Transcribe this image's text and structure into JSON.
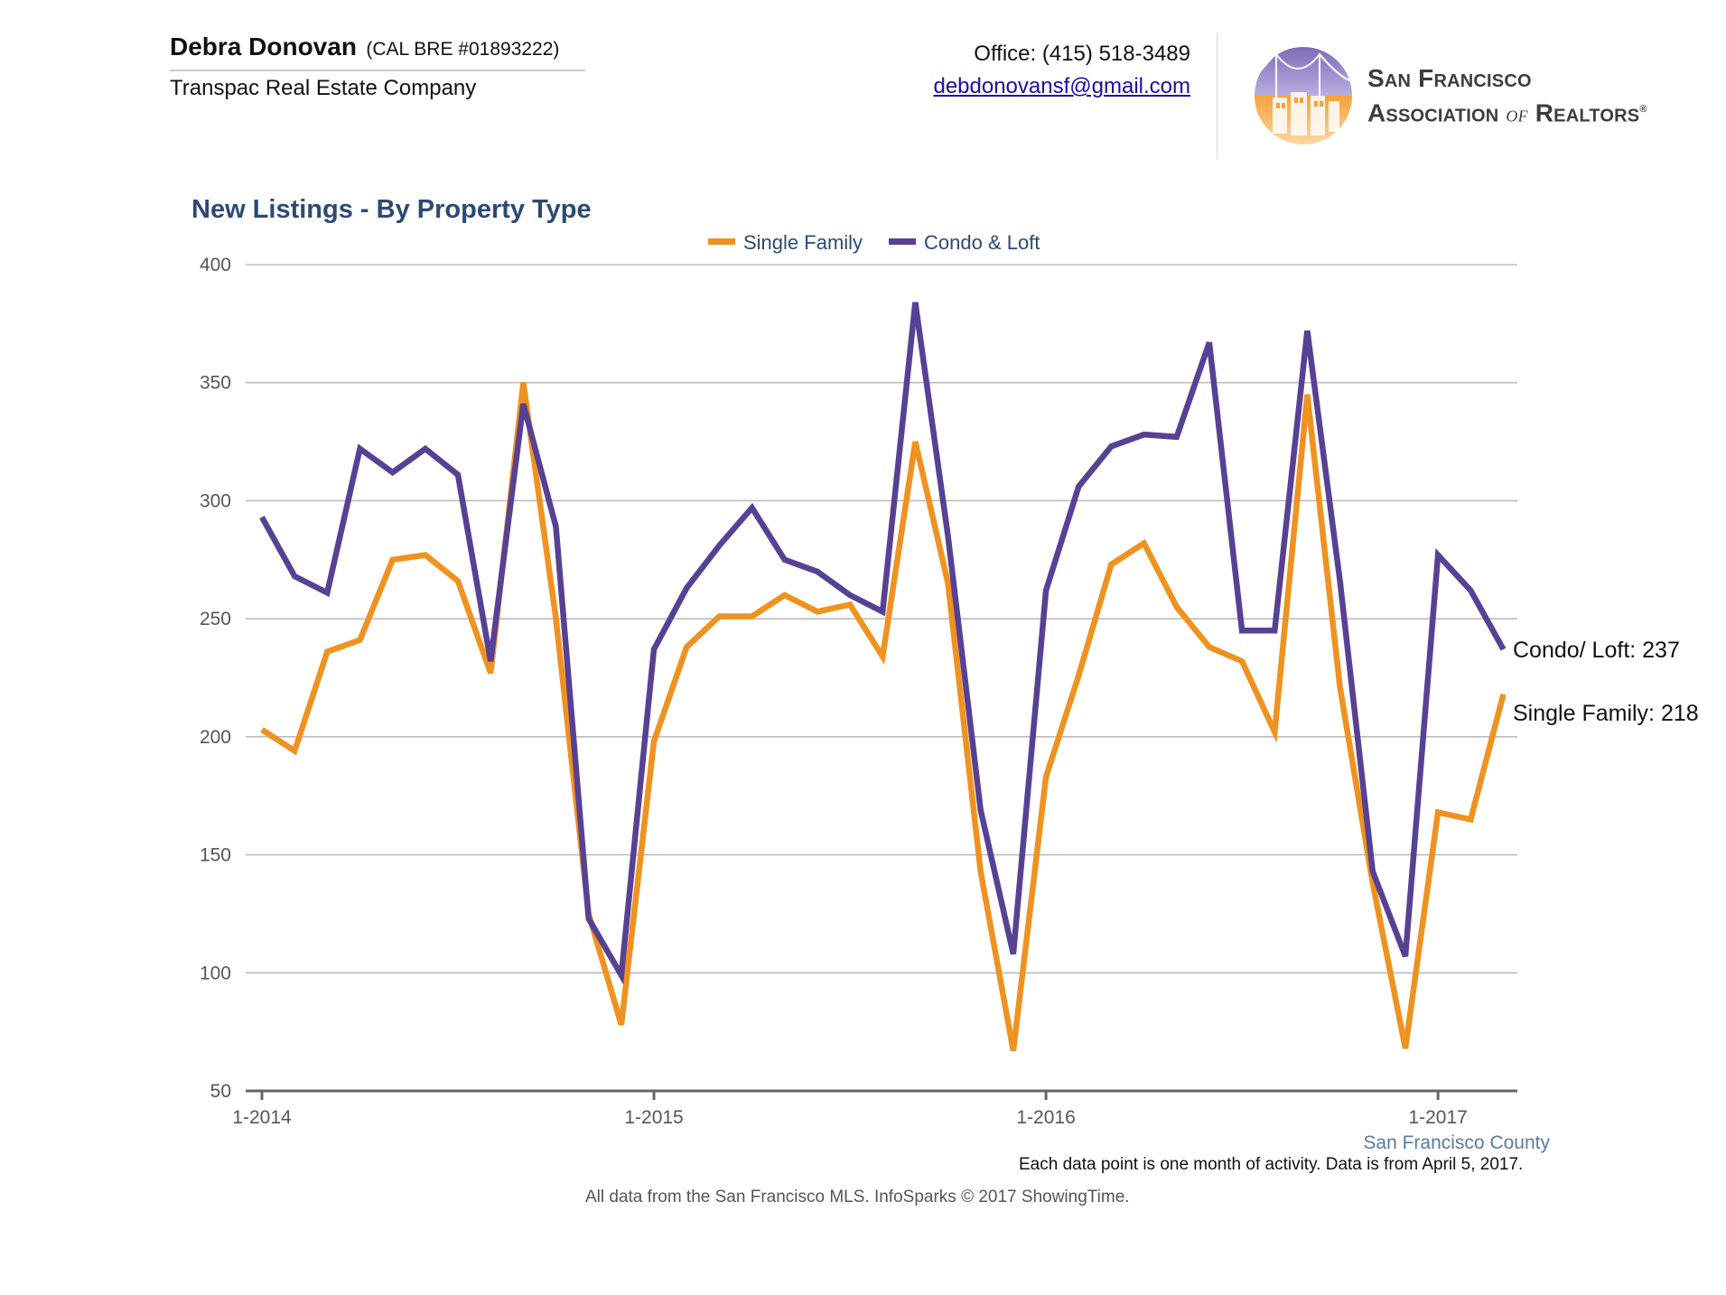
{
  "agent": {
    "name": "Debra Donovan",
    "license": "(CAL BRE #01893222)",
    "company": "Transpac Real Estate Company"
  },
  "contact": {
    "office": "Office: (415) 518-3489",
    "email": "debdonovansf@gmail.com"
  },
  "logo": {
    "line1": "San Francisco",
    "line2_a": "Association",
    "line2_of": "of",
    "line2_b": "Realtors",
    "mark": "®"
  },
  "colors": {
    "single_family": "#f0921f",
    "condo_loft": "#574194",
    "title": "#2b4a74",
    "grid": "#bdbdbd",
    "axis": "#666666"
  },
  "chart_data": {
    "type": "line",
    "title": "New Listings - By Property Type",
    "region": "San Francisco County",
    "ylim": [
      50,
      400
    ],
    "yticks": [
      50,
      100,
      150,
      200,
      250,
      300,
      350,
      400
    ],
    "xtick_labels": [
      "1-2014",
      "1-2015",
      "1-2016",
      "1-2017"
    ],
    "xtick_index": [
      0,
      12,
      24,
      36
    ],
    "legend_position": "top-center",
    "grid": true,
    "x": [
      "1-2014",
      "2-2014",
      "3-2014",
      "4-2014",
      "5-2014",
      "6-2014",
      "7-2014",
      "8-2014",
      "9-2014",
      "10-2014",
      "11-2014",
      "12-2014",
      "1-2015",
      "2-2015",
      "3-2015",
      "4-2015",
      "5-2015",
      "6-2015",
      "7-2015",
      "8-2015",
      "9-2015",
      "10-2015",
      "11-2015",
      "12-2015",
      "1-2016",
      "2-2016",
      "3-2016",
      "4-2016",
      "5-2016",
      "6-2016",
      "7-2016",
      "8-2016",
      "9-2016",
      "10-2016",
      "11-2016",
      "12-2016",
      "1-2017",
      "2-2017",
      "3-2017"
    ],
    "series": [
      {
        "name": "Single Family",
        "color": "#f0921f",
        "end_label": "Single Family: 218",
        "values": [
          203,
          194,
          236,
          241,
          275,
          277,
          266,
          227,
          350,
          250,
          125,
          78,
          198,
          238,
          251,
          251,
          260,
          253,
          256,
          234,
          325,
          265,
          143,
          67,
          183,
          226,
          273,
          282,
          255,
          238,
          232,
          202,
          345,
          221,
          138,
          68,
          168,
          165,
          218
        ]
      },
      {
        "name": "Condo & Loft",
        "color": "#574194",
        "end_label": "Condo/ Loft: 237",
        "values": [
          293,
          268,
          261,
          322,
          312,
          322,
          311,
          232,
          341,
          289,
          123,
          99,
          237,
          263,
          281,
          297,
          275,
          270,
          260,
          253,
          384,
          285,
          169,
          108,
          262,
          306,
          323,
          328,
          327,
          367,
          245,
          245,
          372,
          266,
          143,
          107,
          277,
          262,
          237
        ]
      }
    ],
    "notes": [
      "Each data point is one month of activity. Data is from April 5, 2017.",
      "All data from the San Francisco MLS. InfoSparks © 2017 ShowingTime."
    ]
  }
}
